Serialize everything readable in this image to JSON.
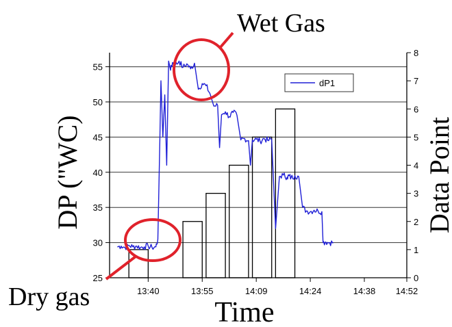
{
  "chart_data": {
    "type": "line",
    "xlabel": "Time",
    "ylabel_left": "DP (\"WC)",
    "ylabel_right": "Data Point",
    "x_ticks": [
      "13:40",
      "13:55",
      "14:09",
      "14:24",
      "14:38",
      "14:52"
    ],
    "xlim_minutes": [
      815,
      892
    ],
    "y_left": {
      "lim": [
        25,
        57
      ],
      "ticks": [
        "25",
        "30",
        "35",
        "40",
        "45",
        "50",
        "55"
      ]
    },
    "y_right": {
      "lim": [
        0,
        8
      ],
      "ticks": [
        "0",
        "1",
        "2",
        "3",
        "4",
        "5",
        "6",
        "7",
        "8"
      ]
    },
    "grid": "horizontal",
    "legend": {
      "position": "top-right",
      "entry": "dP1"
    },
    "series": [
      {
        "name": "dP1",
        "color": "#1f1fd6",
        "axis": "left",
        "time_minutes": [
          817,
          818,
          819,
          820,
          821,
          822,
          823,
          824,
          825,
          826,
          827,
          827.5,
          828,
          828.3,
          828.8,
          829.3,
          829.8,
          830.3,
          830.8,
          831.3,
          832,
          833,
          834,
          835,
          836,
          837,
          838,
          839,
          840,
          841,
          842,
          843,
          843.5,
          844,
          845,
          846,
          847,
          848,
          849,
          850,
          851,
          851.5,
          852,
          853,
          854,
          855,
          856,
          857,
          858,
          859,
          860,
          861,
          861.5,
          862,
          863,
          864,
          865,
          866,
          867,
          868,
          869,
          870,
          870.3,
          871,
          872,
          873
        ],
        "values": [
          29.4,
          29.5,
          29.3,
          29.6,
          29.4,
          29.5,
          29.3,
          29.4,
          29.5,
          29.3,
          29.4,
          30.5,
          44,
          53,
          45,
          51,
          41,
          55.8,
          54.5,
          55.6,
          55.2,
          55.8,
          54.9,
          55.4,
          54.7,
          55.5,
          51.8,
          52.6,
          52.3,
          51.2,
          49.4,
          49.5,
          43.5,
          48.2,
          48.6,
          47.9,
          48.5,
          48.1,
          44.6,
          44.8,
          44.5,
          41,
          44.6,
          44.7,
          44.4,
          44.8,
          44.5,
          44.7,
          32,
          39.4,
          39.6,
          39.3,
          39.5,
          39.2,
          39.5,
          39.4,
          35,
          34.5,
          34.4,
          34.6,
          34.5,
          34.4,
          30,
          30.1,
          30,
          30
        ]
      }
    ],
    "bars": {
      "axis": "right",
      "color": "#000000",
      "items": [
        {
          "time_start": 820,
          "time_end": 825,
          "value": 1
        },
        {
          "time_start": 834,
          "time_end": 839,
          "value": 2
        },
        {
          "time_start": 840,
          "time_end": 845,
          "value": 3
        },
        {
          "time_start": 846,
          "time_end": 851,
          "value": 4
        },
        {
          "time_start": 852,
          "time_end": 857,
          "value": 5
        },
        {
          "time_start": 858,
          "time_end": 863,
          "value": 6
        }
      ]
    },
    "annotations": [
      {
        "text": "Wet Gas",
        "target_time": 836,
        "target_value": 55
      },
      {
        "text": "Dry gas",
        "target_time": 820,
        "target_value": 29.4
      }
    ]
  }
}
